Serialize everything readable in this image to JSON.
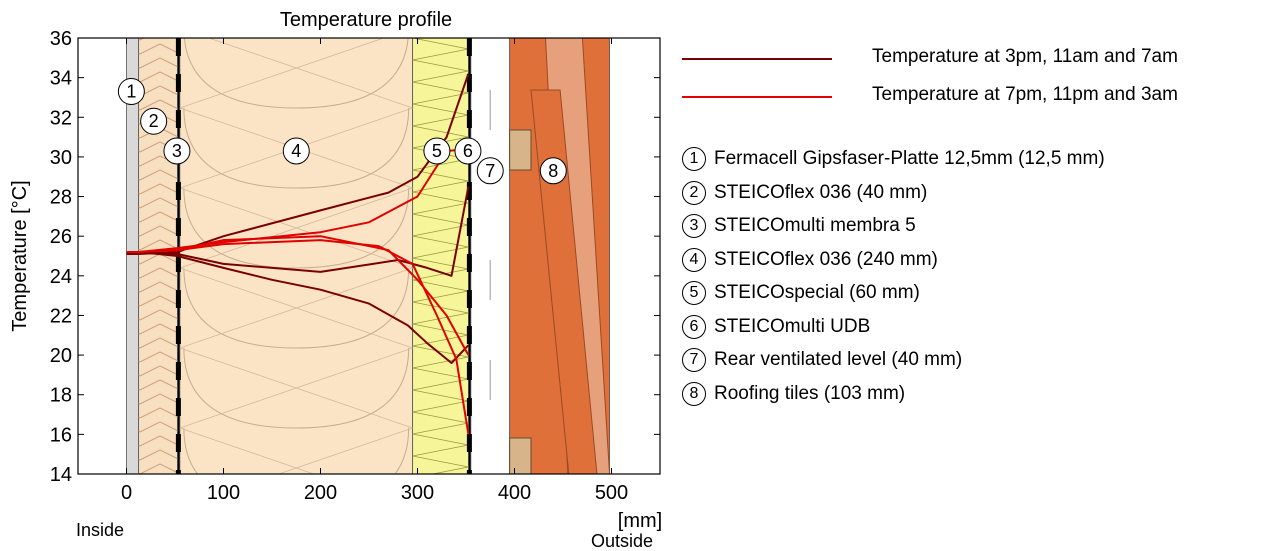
{
  "chart_data": {
    "type": "line",
    "title": "Temperature profile",
    "ylabel": "Temperature  [°C]",
    "xlabel": "[mm]",
    "x_left_label": "Inside",
    "x_right_label": "Outside",
    "xlim": [
      -50,
      550
    ],
    "ylim": [
      14,
      36
    ],
    "x_ticks": [
      0,
      100,
      200,
      300,
      400,
      500
    ],
    "y_ticks": [
      14,
      16,
      18,
      20,
      22,
      24,
      26,
      28,
      30,
      32,
      34,
      36
    ],
    "colors": {
      "dark": "#7a0000",
      "red": "#e00000"
    },
    "series": [
      {
        "name": "Temperature at 3pm, 11am and 7am",
        "group": "dark",
        "x": [
          0,
          12.5,
          52.5,
          100,
          200,
          270,
          300,
          330,
          352.5
        ],
        "y": [
          25.1,
          25.1,
          25.2,
          26.0,
          27.3,
          28.2,
          29.0,
          31.0,
          34.2
        ]
      },
      {
        "name": "Temperature at 3pm, 11am and 7am",
        "group": "dark",
        "x": [
          0,
          12.5,
          52.5,
          100,
          200,
          280,
          310,
          335,
          352.5
        ],
        "y": [
          25.2,
          25.2,
          25.1,
          24.6,
          24.2,
          24.8,
          24.4,
          24.0,
          28.5
        ]
      },
      {
        "name": "Temperature at 3pm, 11am and 7am",
        "group": "dark",
        "x": [
          0,
          12.5,
          52.5,
          100,
          150,
          200,
          250,
          290,
          310,
          335,
          352.5
        ],
        "y": [
          25.2,
          25.2,
          25.0,
          24.4,
          23.8,
          23.3,
          22.6,
          21.5,
          20.6,
          19.6,
          20.5
        ]
      },
      {
        "name": "Temperature at 7pm, 11pm and 3am",
        "group": "red",
        "x": [
          0,
          12.5,
          52.5,
          100,
          200,
          250,
          300,
          330,
          352.5
        ],
        "y": [
          25.2,
          25.2,
          25.4,
          25.7,
          26.2,
          26.7,
          28.0,
          30.3,
          30.4
        ]
      },
      {
        "name": "Temperature at 7pm, 11pm and 3am",
        "group": "red",
        "x": [
          0,
          12.5,
          52.5,
          100,
          200,
          260,
          295,
          320,
          340,
          352.5
        ],
        "y": [
          25.2,
          25.2,
          25.3,
          25.6,
          25.8,
          25.5,
          24.6,
          22.0,
          19.8,
          16.0
        ]
      },
      {
        "name": "Temperature at 7pm, 11pm and 3am",
        "group": "red",
        "x": [
          0,
          12.5,
          52.5,
          100,
          200,
          270,
          300,
          330,
          352.5
        ],
        "y": [
          25.2,
          25.2,
          25.3,
          25.8,
          26.0,
          25.3,
          23.8,
          22.0,
          20.0
        ]
      }
    ],
    "layers": [
      {
        "num": "1",
        "name": "Fermacell Gipsfaser-Platte 12,5mm (12,5 mm)",
        "x0": 0,
        "x1": 12.5,
        "color": "#d9d9d9"
      },
      {
        "num": "2",
        "name": "STEICOflex 036 (40 mm)",
        "x0": 12.5,
        "x1": 52.5,
        "color": "#f8dfc0"
      },
      {
        "num": "3",
        "name": "STEICOmulti membra 5",
        "x0": 52.5,
        "x1": 55,
        "color": "#000000"
      },
      {
        "num": "4",
        "name": "STEICOflex 036 (240 mm)",
        "x0": 55,
        "x1": 295,
        "color": "#fbe4c6"
      },
      {
        "num": "5",
        "name": "STEICOspecial (60 mm)",
        "x0": 295,
        "x1": 352.5,
        "color": "#f6f59a"
      },
      {
        "num": "6",
        "name": "STEICOmulti UDB",
        "x0": 352.5,
        "x1": 355,
        "color": "#000000"
      },
      {
        "num": "7",
        "name": "Rear ventilated level (40 mm)",
        "x0": 355,
        "x1": 395,
        "color": "#ffffff"
      },
      {
        "num": "8",
        "name": "Roofing tiles (103 mm)",
        "x0": 395,
        "x1": 498,
        "color": "#e0703a"
      }
    ],
    "layer_markers": [
      {
        "num": "1",
        "x": 5,
        "y": 33.3
      },
      {
        "num": "2",
        "x": 28,
        "y": 31.8
      },
      {
        "num": "3",
        "x": 52,
        "y": 30.3
      },
      {
        "num": "4",
        "x": 175,
        "y": 30.3
      },
      {
        "num": "5",
        "x": 320,
        "y": 30.3
      },
      {
        "num": "6",
        "x": 352,
        "y": 30.3
      },
      {
        "num": "7",
        "x": 375,
        "y": 29.3
      },
      {
        "num": "8",
        "x": 440,
        "y": 29.3
      }
    ]
  },
  "legend": {
    "series_a": "Temperature at 3pm, 11am and 7am",
    "series_b": "Temperature at 7pm, 11pm and 3am"
  }
}
